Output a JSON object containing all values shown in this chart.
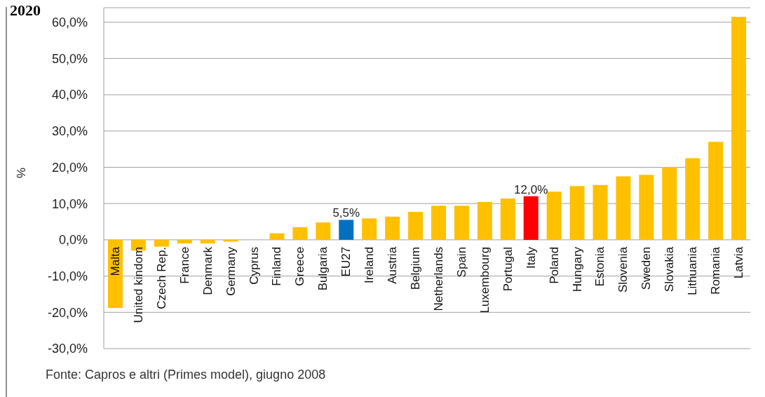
{
  "chart_data": {
    "type": "bar",
    "title": "2020",
    "ylabel": "%",
    "annotations": [
      "Fonte: Capros e altri (Primes model), giugno 2008"
    ],
    "categories": [
      "Malta",
      "United kindom",
      "Czech Rep.",
      "France",
      "Denmark",
      "Germany",
      "Cyprus",
      "Finland",
      "Greece",
      "Bulgaria",
      "EU27",
      "Ireland",
      "Austria",
      "Belgium",
      "Netherlands",
      "Spain",
      "Luxembourg",
      "Portugal",
      "Italy",
      "Poland",
      "Hungary",
      "Estonia",
      "Slovenia",
      "Sweden",
      "Slovakia",
      "Lithuania",
      "Romania",
      "Latvia"
    ],
    "values": [
      -18.8,
      -3.0,
      -1.9,
      -1.0,
      -1.0,
      -0.5,
      0,
      1.8,
      3.5,
      4.8,
      5.5,
      5.9,
      6.4,
      7.7,
      9.4,
      9.4,
      10.4,
      11.4,
      12.0,
      13.3,
      14.8,
      15.1,
      17.5,
      17.9,
      20.1,
      22.5,
      27.0,
      61.5
    ],
    "colors": [
      "#ffc000",
      "#ffc000",
      "#ffc000",
      "#ffc000",
      "#ffc000",
      "#ffc000",
      "#ffc000",
      "#ffc000",
      "#ffc000",
      "#ffc000",
      "#0070c0",
      "#ffc000",
      "#ffc000",
      "#ffc000",
      "#ffc000",
      "#ffc000",
      "#ffc000",
      "#ffc000",
      "#ff0000",
      "#ffc000",
      "#ffc000",
      "#ffc000",
      "#ffc000",
      "#ffc000",
      "#ffc000",
      "#ffc000",
      "#ffc000",
      "#ffc000"
    ],
    "value_labels": [
      null,
      null,
      null,
      null,
      null,
      null,
      null,
      null,
      null,
      null,
      "5,5%",
      null,
      null,
      null,
      null,
      null,
      null,
      null,
      "12,0%",
      null,
      null,
      null,
      null,
      null,
      null,
      null,
      null,
      null
    ],
    "ylim": [
      -30,
      64
    ],
    "yticks": [
      {
        "value": -30,
        "label": "-30,0%"
      },
      {
        "value": -20,
        "label": "-20,0%"
      },
      {
        "value": -10,
        "label": "-10,0%"
      },
      {
        "value": 0,
        "label": "0,0%"
      },
      {
        "value": 10,
        "label": "10,0%"
      },
      {
        "value": 20,
        "label": "20,0%"
      },
      {
        "value": 30,
        "label": "30,0%"
      },
      {
        "value": 40,
        "label": "40,0%"
      },
      {
        "value": 50,
        "label": "50,0%"
      },
      {
        "value": 60,
        "label": "60,0%"
      }
    ],
    "grid": "y"
  }
}
